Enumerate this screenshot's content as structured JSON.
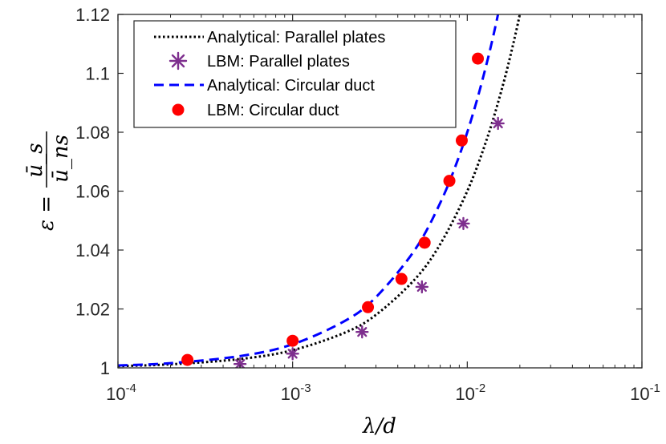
{
  "chart_data": {
    "type": "scatter",
    "x_scale": "log",
    "xlim": [
      0.0001,
      0.1
    ],
    "ylim": [
      1.0,
      1.12
    ],
    "grid": false,
    "legend_position": "top-left",
    "xlabel": "λ/d",
    "ylabel_lhs": "ε =",
    "ylabel_num": "ū_s",
    "ylabel_den": "ū_ns",
    "x_ticks": [
      {
        "value": 0.0001,
        "base": "10",
        "exp": "-4"
      },
      {
        "value": 0.001,
        "base": "10",
        "exp": "-3"
      },
      {
        "value": 0.01,
        "base": "10",
        "exp": "-2"
      },
      {
        "value": 0.1,
        "base": "10",
        "exp": "-1"
      }
    ],
    "y_ticks": [
      {
        "value": 1.0,
        "label": "1"
      },
      {
        "value": 1.02,
        "label": "1.02"
      },
      {
        "value": 1.04,
        "label": "1.04"
      },
      {
        "value": 1.06,
        "label": "1.06"
      },
      {
        "value": 1.08,
        "label": "1.08"
      },
      {
        "value": 1.1,
        "label": "1.1"
      },
      {
        "value": 1.12,
        "label": "1.12"
      }
    ],
    "series": [
      {
        "name": "Analytical: Parallel plates",
        "style": "dotted-line",
        "color": "#000000",
        "x": [
          0.0001,
          0.0002,
          0.0005,
          0.001,
          0.002,
          0.003,
          0.005,
          0.007,
          0.01,
          0.013,
          0.016,
          0.0185,
          0.0205
        ],
        "y": [
          1.0006,
          1.0012,
          1.003,
          1.006,
          1.012,
          1.018,
          1.03,
          1.042,
          1.06,
          1.078,
          1.096,
          1.111,
          1.123
        ]
      },
      {
        "name": "LBM: Parallel plates",
        "style": "asterisk-marker",
        "color": "#7E2F8E",
        "x": [
          0.0005,
          0.001,
          0.0025,
          0.0055,
          0.0095,
          0.015
        ],
        "y": [
          1.0013,
          1.0048,
          1.0122,
          1.0275,
          1.049,
          1.083
        ]
      },
      {
        "name": "Analytical: Circular duct",
        "style": "dashed-line",
        "color": "#0000FF",
        "x": [
          0.0001,
          0.0002,
          0.0005,
          0.001,
          0.002,
          0.003,
          0.005,
          0.007,
          0.009,
          0.011,
          0.013,
          0.0145,
          0.0158
        ],
        "y": [
          1.0008,
          1.0016,
          1.004,
          1.008,
          1.016,
          1.024,
          1.04,
          1.056,
          1.072,
          1.088,
          1.104,
          1.116,
          1.1265
        ]
      },
      {
        "name": "LBM: Circular duct",
        "style": "filled-circle-marker",
        "color": "#FF0000",
        "x": [
          0.00025,
          0.001,
          0.0027,
          0.0042,
          0.0057,
          0.0079,
          0.0093,
          0.0115
        ],
        "y": [
          1.0027,
          1.0092,
          1.0206,
          1.0302,
          1.0425,
          1.0635,
          1.0772,
          1.105
        ]
      }
    ]
  }
}
